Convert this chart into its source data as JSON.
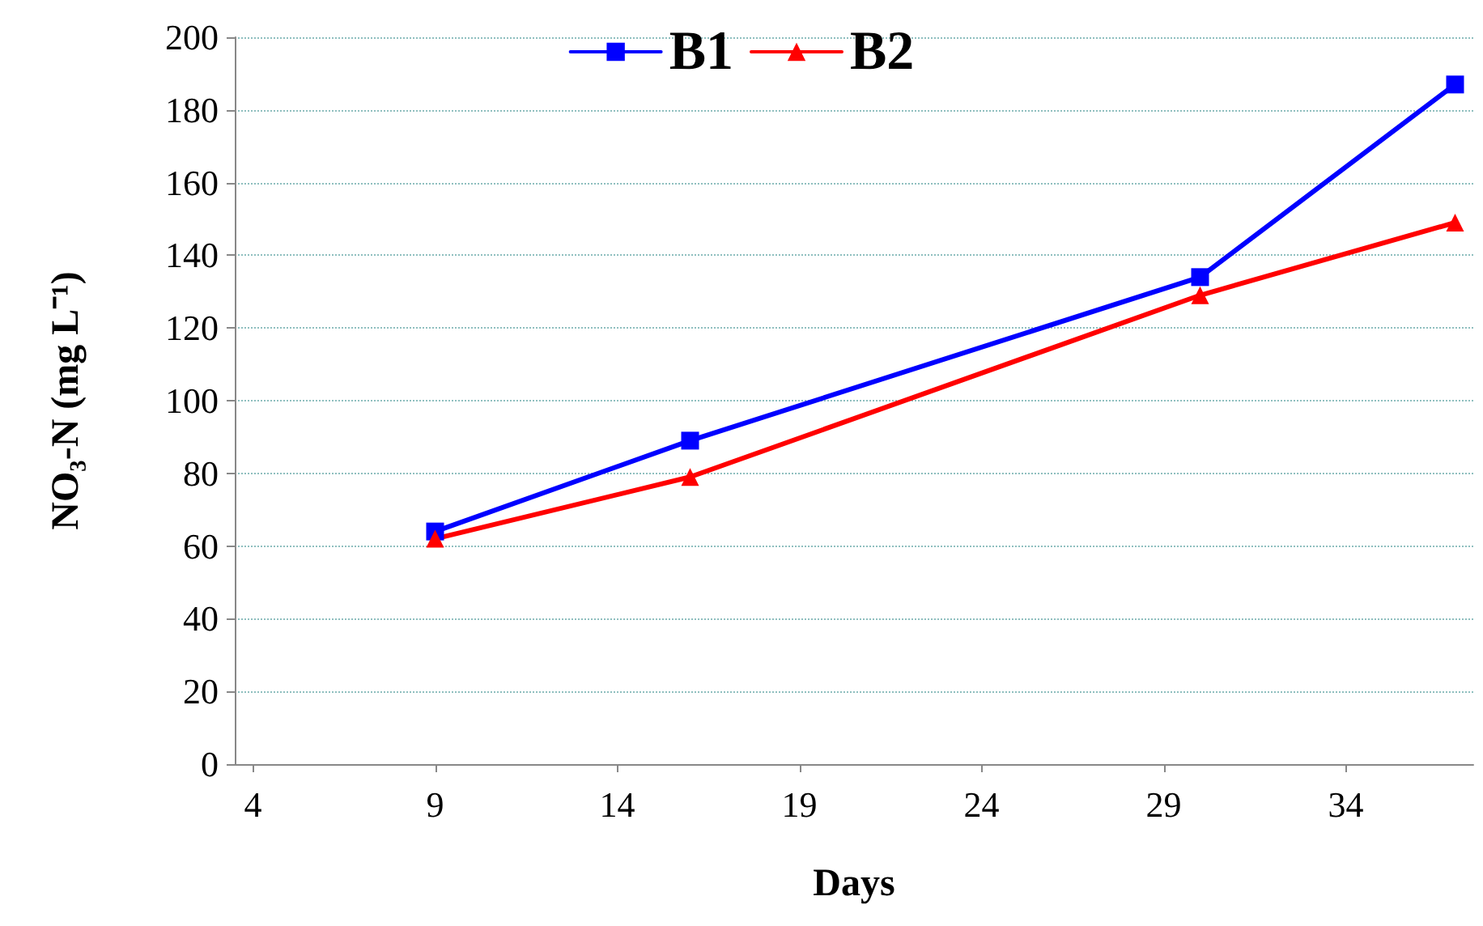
{
  "chart_data": {
    "type": "line",
    "xlabel": "Days",
    "ylabel": "NO₃-N (mg L⁻¹)",
    "x": [
      9,
      16,
      30,
      37
    ],
    "series": [
      {
        "name": "B1",
        "color": "#0000ff",
        "marker": "square",
        "values": [
          64,
          89,
          134,
          187
        ]
      },
      {
        "name": "B2",
        "color": "#ff0000",
        "marker": "triangle",
        "values": [
          62,
          79,
          129,
          149
        ]
      }
    ],
    "xlim": [
      3.5,
      37.5
    ],
    "xticks": [
      4,
      9,
      14,
      19,
      24,
      29,
      34
    ],
    "ylim": [
      0,
      200
    ],
    "yticks": [
      0,
      20,
      40,
      60,
      80,
      100,
      120,
      140,
      160,
      180,
      200
    ],
    "grid": "y",
    "legend": "top",
    "line_style": "solid"
  }
}
